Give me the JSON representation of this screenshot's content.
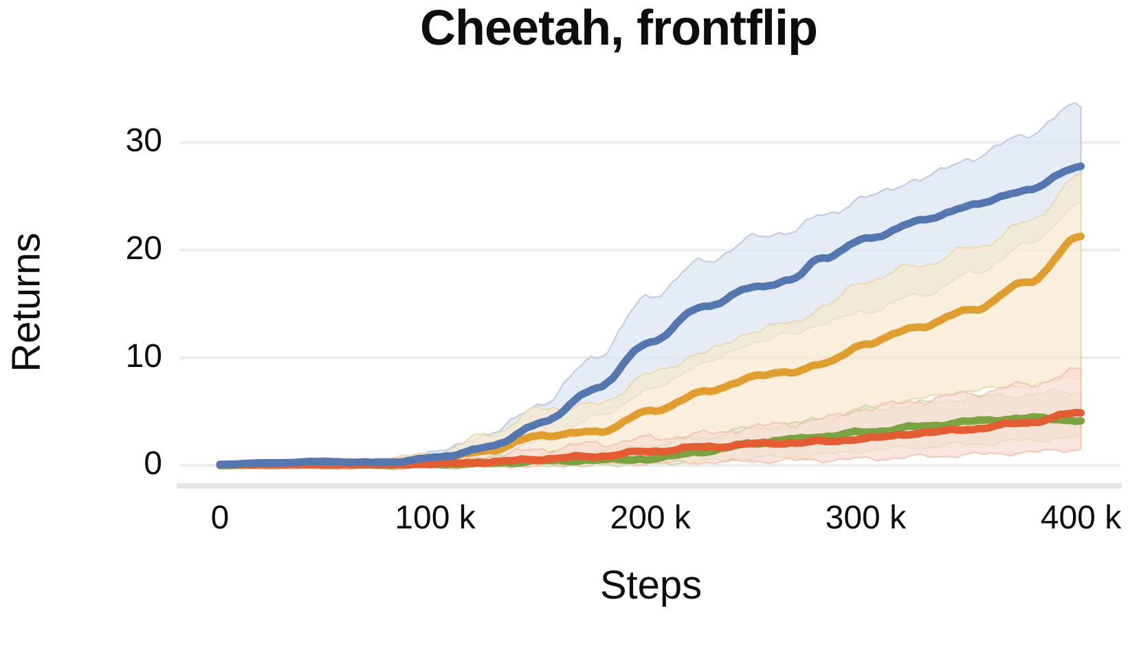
{
  "chart_data": {
    "type": "line",
    "title": "Cheetah, frontflip",
    "xlabel": "Steps",
    "ylabel": "Returns",
    "legend": "none",
    "grid": "horizontal",
    "background": "#ffffff",
    "gridline_color": "#ececec",
    "baseline_color": "#e6e6e6",
    "xlim": [
      -18500,
      419000
    ],
    "ylim": [
      -1.9,
      34.3
    ],
    "x_ticks": [
      {
        "value": 0,
        "label": "0"
      },
      {
        "value": 100000,
        "label": "100 k"
      },
      {
        "value": 200000,
        "label": "200 k"
      },
      {
        "value": 300000,
        "label": "300 k"
      },
      {
        "value": 400000,
        "label": "400 k"
      }
    ],
    "y_ticks": [
      {
        "value": 0,
        "label": "0"
      },
      {
        "value": 10,
        "label": "10"
      },
      {
        "value": 20,
        "label": "20"
      },
      {
        "value": 30,
        "label": "30"
      }
    ],
    "x": [
      0,
      25000,
      50000,
      75000,
      100000,
      125000,
      150000,
      175000,
      200000,
      225000,
      250000,
      265000,
      280000,
      300000,
      325000,
      350000,
      375000,
      400000
    ],
    "series": [
      {
        "id": "blue",
        "color": "#5477af",
        "band_color": "#dce4f1",
        "band_edge": "#b7c6e0",
        "mean": [
          0.1,
          0.25,
          0.35,
          0.25,
          0.7,
          1.7,
          4.0,
          7.2,
          11.5,
          14.8,
          16.6,
          17.2,
          19.3,
          21.0,
          22.7,
          24.2,
          25.6,
          27.8
        ],
        "lo": [
          -0.1,
          0.0,
          0.1,
          0.0,
          0.3,
          0.9,
          2.2,
          4.5,
          7.0,
          9.5,
          11.5,
          12.2,
          13.2,
          14.3,
          15.8,
          17.8,
          20.5,
          24.3
        ],
        "hi": [
          0.3,
          0.5,
          0.6,
          0.5,
          1.2,
          2.9,
          5.8,
          10.2,
          15.8,
          19.0,
          21.2,
          21.8,
          23.2,
          24.9,
          26.6,
          28.6,
          30.8,
          33.6
        ]
      },
      {
        "id": "orange",
        "color": "#e09e2f",
        "band_color": "#f6e9cf",
        "band_edge": "#e9d6a9",
        "mean": [
          0.05,
          0.1,
          0.15,
          0.2,
          0.5,
          1.4,
          2.8,
          3.1,
          5.0,
          6.8,
          8.3,
          8.7,
          9.4,
          11.3,
          12.9,
          14.5,
          17.0,
          21.2
        ],
        "lo": [
          -0.2,
          -0.1,
          -0.1,
          0.0,
          0.1,
          0.4,
          0.9,
          1.2,
          1.8,
          2.6,
          3.4,
          3.7,
          4.3,
          5.3,
          6.2,
          7.0,
          7.4,
          8.2
        ],
        "hi": [
          0.3,
          0.4,
          0.5,
          0.6,
          1.1,
          2.9,
          5.3,
          5.6,
          8.5,
          10.5,
          12.6,
          13.2,
          14.7,
          17.2,
          18.6,
          20.2,
          22.5,
          27.0
        ]
      },
      {
        "id": "green",
        "color": "#7ca341",
        "band_color": "#e1ebcd",
        "band_edge": "#c6d8a2",
        "mean": [
          0.0,
          0.05,
          0.05,
          0.05,
          0.1,
          0.2,
          0.4,
          0.5,
          0.6,
          1.3,
          2.1,
          2.4,
          2.7,
          3.1,
          3.6,
          4.1,
          4.4,
          4.2
        ],
        "lo": [
          -0.2,
          -0.2,
          -0.2,
          -0.2,
          -0.1,
          0.0,
          0.0,
          0.1,
          0.2,
          0.4,
          0.7,
          0.8,
          1.0,
          1.4,
          1.7,
          2.0,
          2.3,
          2.6
        ],
        "hi": [
          0.2,
          0.3,
          0.3,
          0.3,
          0.4,
          0.6,
          1.0,
          1.3,
          1.8,
          2.6,
          3.5,
          3.8,
          4.3,
          5.2,
          5.7,
          6.3,
          6.6,
          6.9
        ]
      },
      {
        "id": "red",
        "color": "#e45c31",
        "band_color": "#f8ddd2",
        "band_edge": "#f0c2ae",
        "mean": [
          0.05,
          0.1,
          0.1,
          0.05,
          0.15,
          0.3,
          0.6,
          0.85,
          1.3,
          1.7,
          2.0,
          2.1,
          2.2,
          2.5,
          3.0,
          3.4,
          4.0,
          4.9
        ],
        "lo": [
          -0.3,
          -0.3,
          -0.3,
          -0.3,
          -0.2,
          -0.1,
          0.0,
          0.1,
          0.2,
          0.3,
          0.4,
          0.45,
          0.5,
          0.6,
          0.8,
          1.0,
          1.2,
          1.5
        ],
        "hi": [
          0.3,
          0.4,
          0.4,
          0.4,
          0.5,
          0.8,
          1.5,
          2.0,
          2.5,
          2.9,
          3.6,
          3.9,
          4.3,
          5.3,
          6.0,
          6.7,
          7.5,
          8.8
        ]
      }
    ]
  }
}
